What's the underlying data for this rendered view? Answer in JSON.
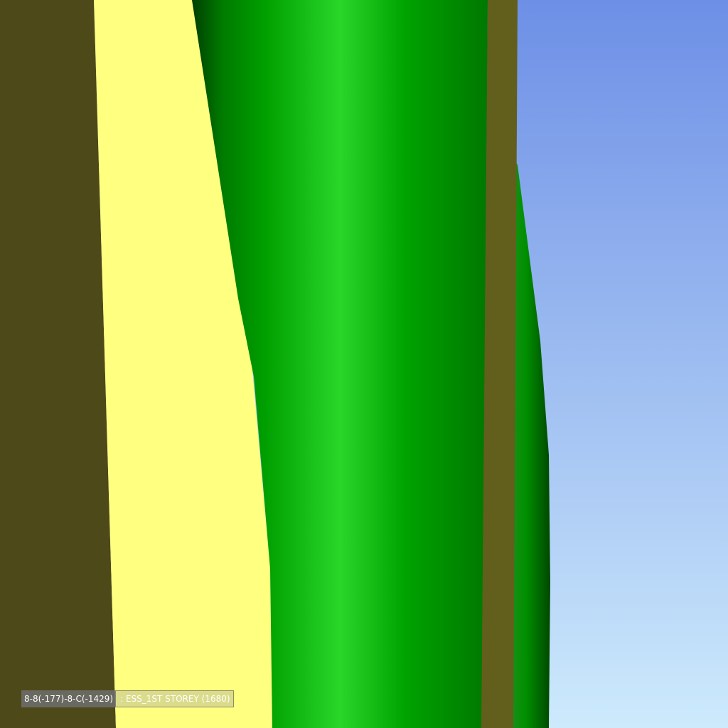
{
  "scene": {
    "colors": {
      "sky_top": "#6d8fe6",
      "sky_bottom": "#cdeafc",
      "dark_wall": "#4e4918",
      "light_wall": "#ffff80",
      "column_green": "#00a000",
      "column_highlight": "#2ad62a",
      "column_shadow": "#004d00",
      "olive_strip": "#625f1c"
    },
    "objects": [
      "dark-wall",
      "light-wall",
      "green-column",
      "olive-strip",
      "back-green-column"
    ]
  },
  "status": {
    "grid_reference": "8-8(-177)-8-C(-1429)",
    "storey": ": ESS_1ST STOREY (1680)"
  }
}
